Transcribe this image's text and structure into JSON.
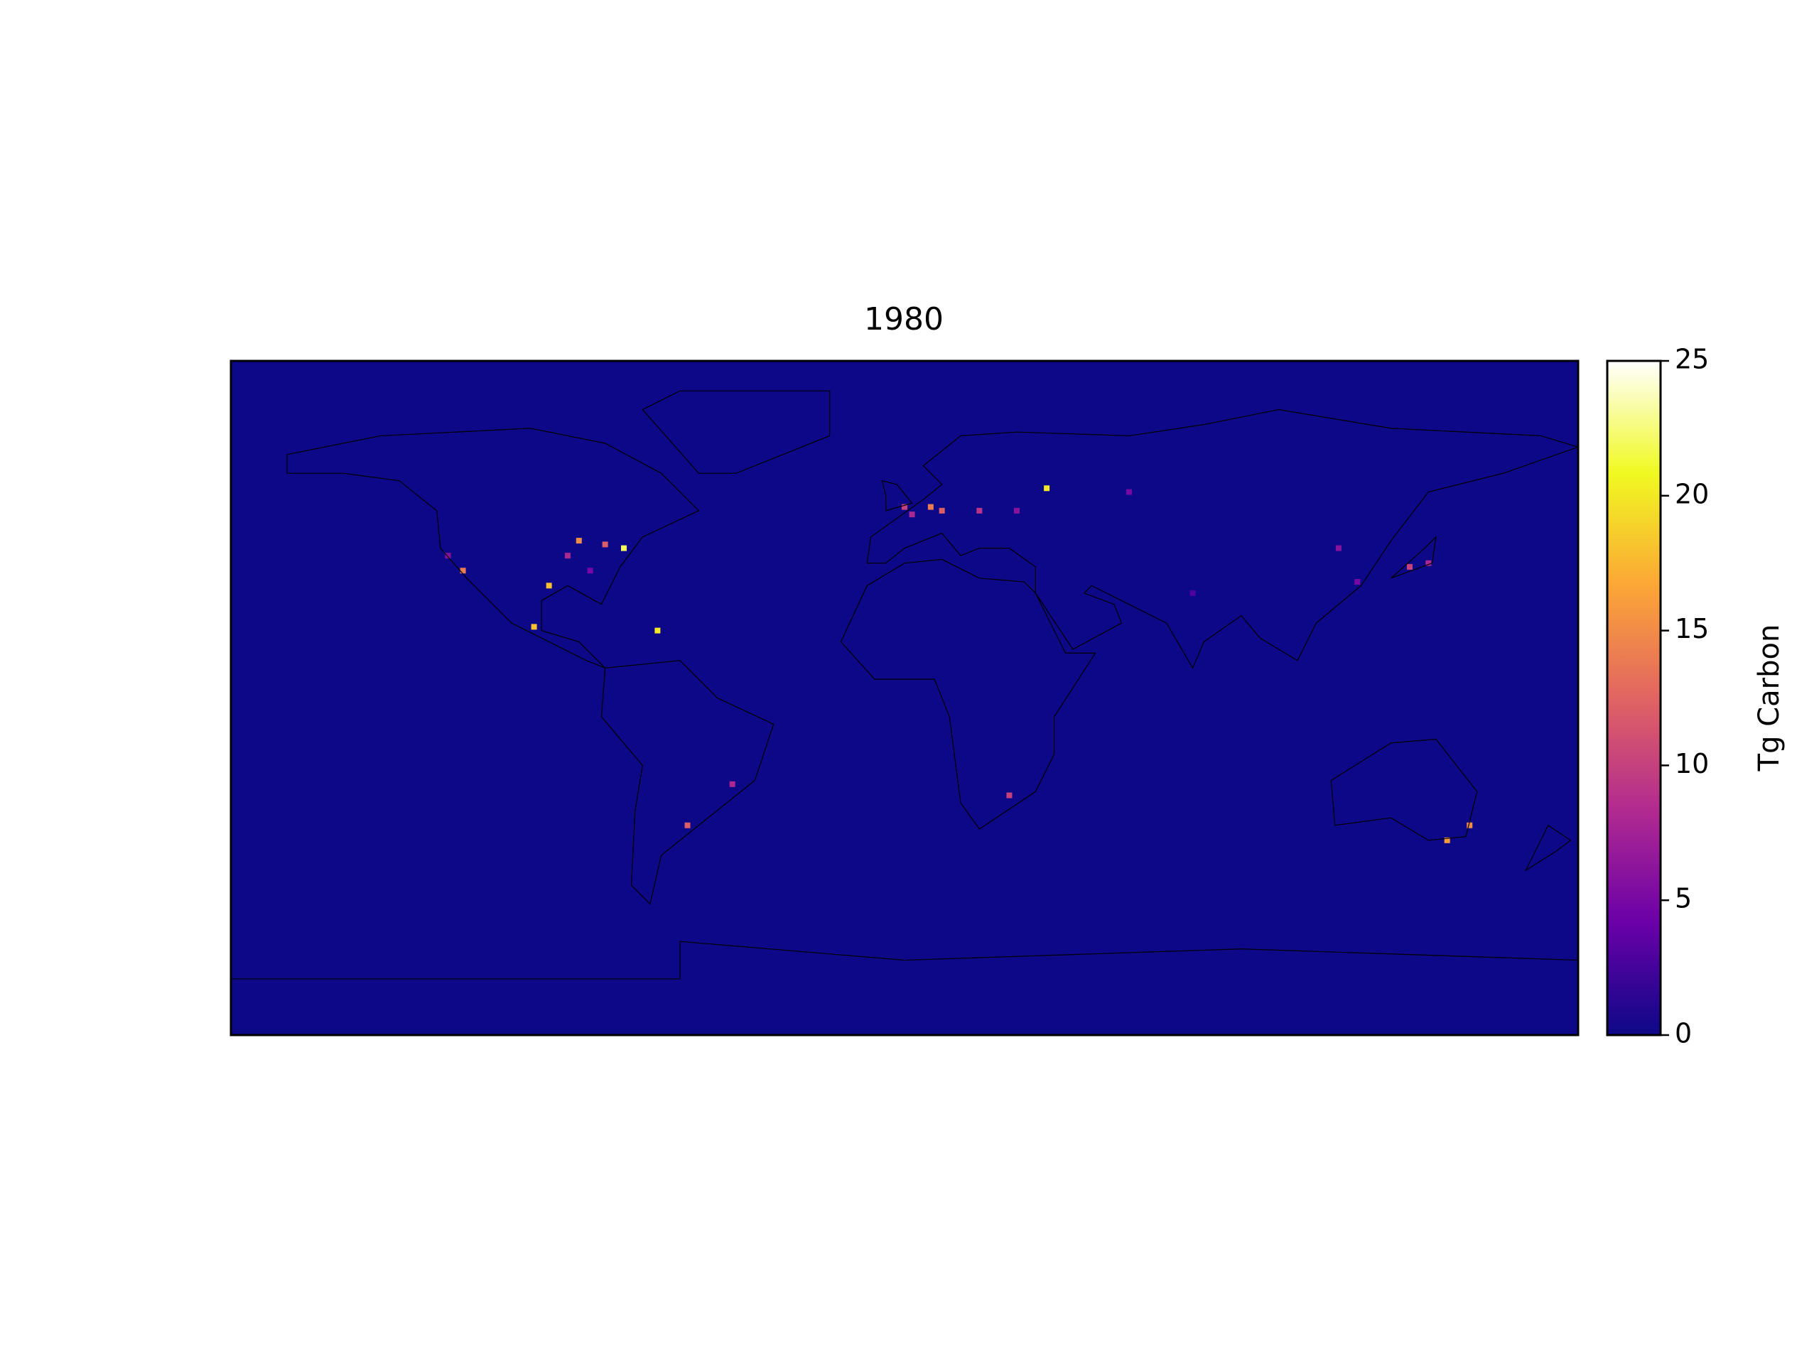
{
  "chart_data": {
    "type": "map",
    "title": "1980",
    "colorbar_label": "Tg Carbon",
    "clim": [
      0,
      25
    ],
    "cticks": [
      0,
      5,
      10,
      15,
      20,
      25
    ],
    "colormap": [
      "#0d0887",
      "#6a00a8",
      "#b12a90",
      "#e16462",
      "#fca636",
      "#f0f921",
      "#ffffff"
    ],
    "xlim": [
      -180,
      180
    ],
    "ylim": [
      -90,
      90
    ],
    "points": [
      {
        "lon": -75,
        "lat": 40,
        "value": 22
      },
      {
        "lon": -80,
        "lat": 41,
        "value": 12
      },
      {
        "lon": -87,
        "lat": 42,
        "value": 15
      },
      {
        "lon": -95,
        "lat": 30,
        "value": 18
      },
      {
        "lon": -118,
        "lat": 34,
        "value": 14
      },
      {
        "lon": -122,
        "lat": 38,
        "value": 6
      },
      {
        "lon": -90,
        "lat": 38,
        "value": 8
      },
      {
        "lon": -84,
        "lat": 34,
        "value": 5
      },
      {
        "lon": -99,
        "lat": 19,
        "value": 18
      },
      {
        "lon": -66,
        "lat": 18,
        "value": 20
      },
      {
        "lon": 0,
        "lat": 51,
        "value": 10
      },
      {
        "lon": 7,
        "lat": 51,
        "value": 14
      },
      {
        "lon": 2,
        "lat": 49,
        "value": 8
      },
      {
        "lon": 10,
        "lat": 50,
        "value": 12
      },
      {
        "lon": 20,
        "lat": 50,
        "value": 9
      },
      {
        "lon": 38,
        "lat": 56,
        "value": 20
      },
      {
        "lon": 30,
        "lat": 50,
        "value": 6
      },
      {
        "lon": 60,
        "lat": 55,
        "value": 5
      },
      {
        "lon": 140,
        "lat": 36,
        "value": 8
      },
      {
        "lon": 135,
        "lat": 35,
        "value": 10
      },
      {
        "lon": 116,
        "lat": 40,
        "value": 6
      },
      {
        "lon": 121,
        "lat": 31,
        "value": 5
      },
      {
        "lon": 77,
        "lat": 28,
        "value": 3
      },
      {
        "lon": 28,
        "lat": -26,
        "value": 10
      },
      {
        "lon": 151,
        "lat": -34,
        "value": 15
      },
      {
        "lon": 145,
        "lat": -38,
        "value": 16
      },
      {
        "lon": -46,
        "lat": -23,
        "value": 8
      },
      {
        "lon": -58,
        "lat": -34,
        "value": 12
      }
    ]
  }
}
